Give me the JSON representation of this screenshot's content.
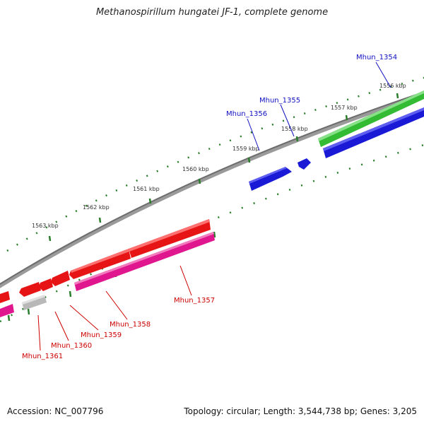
{
  "title": "Methanospirillum hungatei JF-1, complete genome",
  "footer": {
    "accession": "Accession: NC_007796",
    "summary": "Topology: circular; Length: 3,544,738 bp; Genes: 3,205"
  },
  "colors": {
    "backbone": "#7a7a7a",
    "tick": "#2a7d2a",
    "plus_gene_label": "#1010c0",
    "minus_gene_label": "#cc0000",
    "blue": "#1a1ad6",
    "green": "#33bb33",
    "red": "#e61414",
    "magenta": "#e0168f",
    "grey": "#b8b8b8"
  },
  "kbp_labels": [
    "1556 kbp",
    "1557 kbp",
    "1558 kbp",
    "1559 kbp",
    "1560 kbp",
    "1561 kbp",
    "1562 kbp",
    "1563 kbp"
  ],
  "gene_labels": {
    "plus": [
      "Mhun_1354",
      "Mhun_1355",
      "Mhun_1356"
    ],
    "minus": [
      "Mhun_1357",
      "Mhun_1358",
      "Mhun_1359",
      "Mhun_1360",
      "Mhun_1361"
    ]
  }
}
